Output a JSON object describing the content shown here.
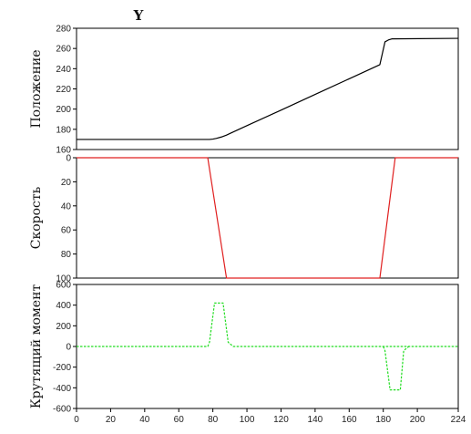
{
  "title": "Y",
  "chart_data": [
    {
      "type": "line",
      "ylabel": "Положение",
      "xlim": [
        0,
        224
      ],
      "ylim": [
        160,
        280
      ],
      "yticks": [
        160,
        180,
        200,
        220,
        240,
        260,
        280
      ],
      "y_inverted": false,
      "color": "#000000",
      "dashed": false,
      "series": [
        {
          "x": [
            0,
            78,
            80,
            82,
            85,
            88,
            92,
            100,
            120,
            140,
            160,
            178,
            181,
            183,
            185,
            224
          ],
          "y": [
            170,
            170,
            170.3,
            171,
            172.4,
            174.3,
            177.4,
            183.6,
            199,
            214.5,
            230,
            244,
            266.5,
            268.4,
            269.5,
            270
          ]
        }
      ]
    },
    {
      "type": "line",
      "ylabel": "Скорость",
      "xlim": [
        0,
        224
      ],
      "ylim": [
        0,
        100
      ],
      "yticks": [
        0,
        20,
        40,
        60,
        80,
        100
      ],
      "y_inverted": true,
      "color": "#e02020",
      "dashed": false,
      "series": [
        {
          "x": [
            0,
            77,
            88,
            178,
            187,
            224
          ],
          "y": [
            0,
            0,
            100,
            100,
            0,
            0
          ]
        }
      ]
    },
    {
      "type": "line",
      "ylabel": "Крутящий момент",
      "xlim": [
        0,
        224
      ],
      "ylim": [
        -600,
        600
      ],
      "yticks": [
        -600,
        -400,
        -200,
        0,
        200,
        400,
        600
      ],
      "y_inverted": false,
      "color": "#22dd22",
      "dashed": true,
      "series": [
        {
          "x": [
            0,
            77,
            78,
            81,
            86,
            89,
            92,
            200,
            224
          ],
          "y": [
            0,
            0,
            40,
            420,
            420,
            40,
            0,
            0,
            0
          ]
        },
        {
          "x": [
            180,
            181,
            184,
            190,
            192,
            195
          ],
          "y": [
            0,
            -40,
            -420,
            -420,
            -40,
            0
          ]
        }
      ]
    }
  ],
  "xaxis": {
    "ticks": [
      0,
      20,
      40,
      60,
      80,
      100,
      120,
      140,
      160,
      180,
      200,
      224
    ]
  }
}
